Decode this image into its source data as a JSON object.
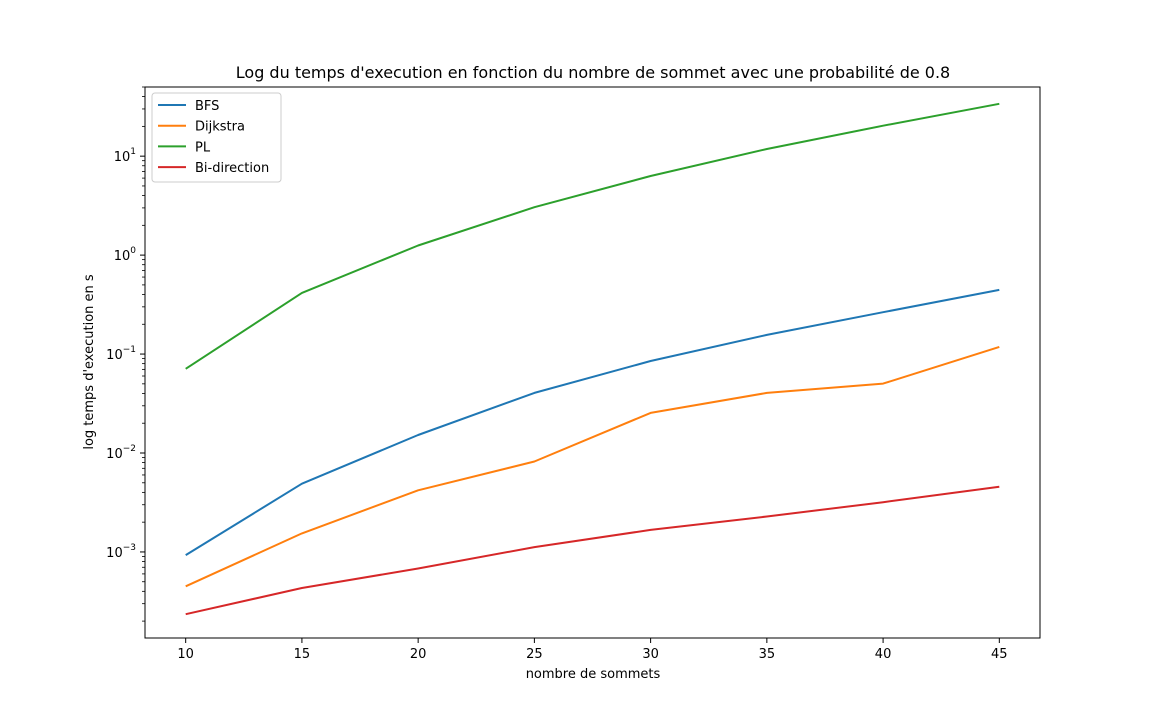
{
  "chart_data": {
    "type": "line",
    "title": "Log du temps d'execution en fonction du nombre de sommet avec une probabilité de 0.8",
    "xlabel": "nombre de sommets",
    "ylabel": "log temps d'execution en s",
    "yscale": "log",
    "x": [
      10,
      15,
      20,
      25,
      30,
      35,
      40,
      45
    ],
    "xticks": [
      10,
      15,
      20,
      25,
      30,
      35,
      40,
      45
    ],
    "xlim": [
      8.25,
      46.75
    ],
    "yticks": [
      0.001,
      0.01,
      0.1,
      1,
      10
    ],
    "ytick_labels": [
      {
        "base": "10",
        "exp": "−3"
      },
      {
        "base": "10",
        "exp": "−2"
      },
      {
        "base": "10",
        "exp": "−1"
      },
      {
        "base": "10",
        "exp": "0"
      },
      {
        "base": "10",
        "exp": "1"
      }
    ],
    "ylim": [
      0.000135,
      50
    ],
    "grid": false,
    "legend_position": "top-left",
    "series": [
      {
        "name": "BFS",
        "color": "#1f77b4",
        "values": [
          0.00093,
          0.0049,
          0.0152,
          0.0405,
          0.085,
          0.156,
          0.265,
          0.445
        ]
      },
      {
        "name": "Dijkstra",
        "color": "#ff7f0e",
        "values": [
          0.00045,
          0.00154,
          0.0042,
          0.0082,
          0.0254,
          0.0405,
          0.0503,
          0.118
        ]
      },
      {
        "name": "PL",
        "color": "#2ca02c",
        "values": [
          0.071,
          0.415,
          1.25,
          3.05,
          6.3,
          11.8,
          20.3,
          33.8
        ]
      },
      {
        "name": "Bi-direction",
        "color": "#d62728",
        "values": [
          0.000235,
          0.000432,
          0.00068,
          0.00112,
          0.00167,
          0.00228,
          0.00318,
          0.00455
        ]
      }
    ]
  }
}
